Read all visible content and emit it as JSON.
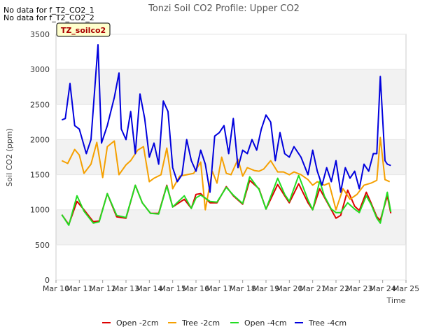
{
  "notes": [
    "No data for f_T2_CO2_1",
    "No data for f_T2_CO2_2"
  ],
  "badge": "TZ_soilco2",
  "chart_data": {
    "type": "line",
    "title": "Tonzi Soil CO2 Profile: Upper CO2",
    "xlabel": "Time",
    "ylabel": "Soil CO2 (ppm)",
    "xlim": [
      10,
      25
    ],
    "ylim": [
      0,
      3500
    ],
    "yticks": [
      0,
      500,
      1000,
      1500,
      2000,
      2500,
      3000,
      3500
    ],
    "xticks": [
      10,
      11,
      12,
      13,
      14,
      15,
      16,
      17,
      18,
      19,
      20,
      21,
      22,
      23,
      24,
      25
    ],
    "xtick_labels": [
      "Mar 10",
      "Mar 11",
      "Mar 12",
      "Mar 13",
      "Mar 14",
      "Mar 15",
      "Mar 16",
      "Mar 17",
      "Mar 18",
      "Mar 19",
      "Mar 20",
      "Mar 21",
      "Mar 22",
      "Mar 23",
      "Mar 24",
      "Mar 25"
    ],
    "grid": "horizontal bands",
    "legend_position": "bottom",
    "series": [
      {
        "name": "Open -2cm",
        "color": "#dd0000",
        "x": [
          10.25,
          10.55,
          10.9,
          11.2,
          11.6,
          11.85,
          12.2,
          12.6,
          13.0,
          13.4,
          13.7,
          14.05,
          14.4,
          14.75,
          15.0,
          15.5,
          15.8,
          16.0,
          16.2,
          16.6,
          16.9,
          17.3,
          17.6,
          18.0,
          18.3,
          18.7,
          19.0,
          19.5,
          19.8,
          20.0,
          20.4,
          20.8,
          21.0,
          21.3,
          21.5,
          21.8,
          22.0,
          22.2,
          22.5,
          22.8,
          23.0,
          23.3,
          23.5,
          23.75,
          23.9,
          24.2,
          24.35
        ],
        "y": [
          930,
          790,
          1120,
          1000,
          830,
          840,
          1230,
          900,
          880,
          1350,
          1100,
          950,
          950,
          1350,
          1040,
          1150,
          1020,
          1220,
          1230,
          1100,
          1100,
          1330,
          1200,
          1080,
          1420,
          1300,
          1010,
          1360,
          1200,
          1100,
          1370,
          1100,
          1000,
          1300,
          1180,
          1000,
          880,
          920,
          1280,
          1050,
          990,
          1250,
          1100,
          900,
          850,
          1200,
          950
        ]
      },
      {
        "name": "Tree -2cm",
        "color": "#f5a000",
        "x": [
          10.25,
          10.5,
          10.8,
          11.0,
          11.2,
          11.5,
          11.75,
          12.0,
          12.2,
          12.5,
          12.7,
          13.0,
          13.2,
          13.5,
          13.75,
          14.0,
          14.2,
          14.5,
          14.75,
          15.0,
          15.3,
          15.6,
          15.9,
          16.2,
          16.4,
          16.7,
          16.9,
          17.1,
          17.3,
          17.5,
          17.8,
          18.0,
          18.2,
          18.5,
          18.7,
          18.9,
          19.2,
          19.5,
          19.75,
          20.0,
          20.2,
          20.5,
          20.8,
          21.0,
          21.2,
          21.5,
          21.7,
          22.0,
          22.3,
          22.6,
          22.9,
          23.2,
          23.5,
          23.75,
          23.9,
          24.1,
          24.3
        ],
        "y": [
          1700,
          1660,
          1860,
          1780,
          1520,
          1650,
          1960,
          1460,
          1900,
          1980,
          1500,
          1640,
          1700,
          1850,
          1900,
          1400,
          1450,
          1500,
          1880,
          1300,
          1480,
          1500,
          1520,
          1680,
          1000,
          1550,
          1380,
          1750,
          1520,
          1500,
          1720,
          1480,
          1600,
          1560,
          1550,
          1580,
          1700,
          1540,
          1540,
          1500,
          1540,
          1500,
          1430,
          1350,
          1400,
          1350,
          1380,
          1000,
          1300,
          1150,
          1220,
          1350,
          1380,
          1420,
          2030,
          1430,
          1400
        ]
      },
      {
        "name": "Open -4cm",
        "color": "#22dd22",
        "x": [
          10.25,
          10.55,
          10.9,
          11.2,
          11.6,
          11.85,
          12.2,
          12.6,
          13.0,
          13.4,
          13.7,
          14.05,
          14.4,
          14.75,
          15.0,
          15.5,
          15.8,
          16.0,
          16.2,
          16.6,
          16.9,
          17.3,
          17.6,
          18.0,
          18.3,
          18.7,
          19.0,
          19.5,
          19.8,
          20.0,
          20.4,
          20.8,
          21.0,
          21.3,
          21.5,
          21.8,
          22.0,
          22.2,
          22.5,
          22.8,
          23.0,
          23.3,
          23.5,
          23.75,
          23.9,
          24.2,
          24.35
        ],
        "y": [
          930,
          780,
          1200,
          980,
          810,
          830,
          1230,
          920,
          890,
          1350,
          1100,
          950,
          940,
          1340,
          1040,
          1200,
          1020,
          1170,
          1210,
          1120,
          1110,
          1320,
          1210,
          1090,
          1470,
          1290,
          1010,
          1450,
          1220,
          1120,
          1490,
          1140,
          1000,
          1410,
          1200,
          1010,
          960,
          960,
          1100,
          1010,
          960,
          1200,
          1080,
          880,
          810,
          1250,
          970
        ]
      },
      {
        "name": "Tree -4cm",
        "color": "#0000dd",
        "x": [
          10.25,
          10.4,
          10.6,
          10.8,
          11.0,
          11.3,
          11.5,
          11.8,
          11.95,
          12.2,
          12.5,
          12.7,
          12.8,
          13.0,
          13.2,
          13.4,
          13.6,
          13.8,
          14.0,
          14.2,
          14.4,
          14.6,
          14.8,
          15.0,
          15.2,
          15.4,
          15.6,
          15.8,
          16.0,
          16.2,
          16.4,
          16.6,
          16.8,
          17.0,
          17.2,
          17.4,
          17.6,
          17.8,
          18.0,
          18.2,
          18.4,
          18.6,
          18.8,
          19.0,
          19.2,
          19.4,
          19.6,
          19.8,
          20.0,
          20.2,
          20.5,
          20.8,
          21.0,
          21.2,
          21.4,
          21.6,
          21.8,
          22.0,
          22.2,
          22.4,
          22.6,
          22.8,
          23.0,
          23.2,
          23.4,
          23.6,
          23.75,
          23.9,
          24.1,
          24.2,
          24.35
        ],
        "y": [
          2280,
          2300,
          2800,
          2200,
          2150,
          1800,
          2000,
          3350,
          1950,
          2200,
          2600,
          2950,
          2150,
          2000,
          2400,
          1800,
          2650,
          2300,
          1750,
          1950,
          1650,
          2550,
          2400,
          1600,
          1400,
          1500,
          2000,
          1700,
          1550,
          1850,
          1650,
          1250,
          2050,
          2100,
          2200,
          1800,
          2300,
          1600,
          1850,
          1800,
          2000,
          1850,
          2150,
          2350,
          2250,
          1700,
          2100,
          1800,
          1750,
          1900,
          1750,
          1500,
          1850,
          1550,
          1350,
          1600,
          1400,
          1700,
          1250,
          1600,
          1450,
          1550,
          1300,
          1650,
          1550,
          1800,
          1800,
          2900,
          1700,
          1650,
          1630
        ]
      }
    ]
  }
}
